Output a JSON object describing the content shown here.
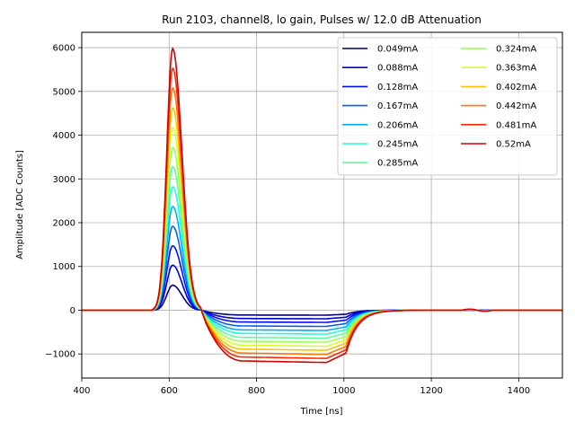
{
  "chart_data": {
    "type": "line",
    "title": "Run 2103, channel8, lo gain, Pulses w/ 12.0 dB Attenuation",
    "xlabel": "Time [ns]",
    "ylabel": "Amplitude [ADC Counts]",
    "xlim": [
      400,
      1500
    ],
    "ylim": [
      -1550,
      6350
    ],
    "xticks": [
      400,
      600,
      800,
      1000,
      1200,
      1400
    ],
    "yticks": [
      -1000,
      0,
      1000,
      2000,
      3000,
      4000,
      5000,
      6000
    ],
    "ytick_labels": [
      "−1000",
      "0",
      "1000",
      "2000",
      "3000",
      "4000",
      "5000",
      "6000"
    ],
    "grid": true,
    "legend_position": "top-right",
    "legend_columns": 2,
    "series": [
      {
        "name": "0.049mA",
        "color": "#00007f",
        "peak": 570,
        "undershoot": -110
      },
      {
        "name": "0.088mA",
        "color": "#0000c8",
        "peak": 1030,
        "undershoot": -190
      },
      {
        "name": "0.128mA",
        "color": "#0010ff",
        "peak": 1470,
        "undershoot": -270
      },
      {
        "name": "0.167mA",
        "color": "#0060ff",
        "peak": 1920,
        "undershoot": -360
      },
      {
        "name": "0.206mA",
        "color": "#00b0ff",
        "peak": 2370,
        "undershoot": -450
      },
      {
        "name": "0.245mA",
        "color": "#20ffd8",
        "peak": 2820,
        "undershoot": -530
      },
      {
        "name": "0.285mA",
        "color": "#5cff9b",
        "peak": 3280,
        "undershoot": -620
      },
      {
        "name": "0.324mA",
        "color": "#9bff5c",
        "peak": 3720,
        "undershoot": -710
      },
      {
        "name": "0.363mA",
        "color": "#d8ff20",
        "peak": 4170,
        "undershoot": -800
      },
      {
        "name": "0.402mA",
        "color": "#ffc400",
        "peak": 4620,
        "undershoot": -890
      },
      {
        "name": "0.442mA",
        "color": "#ff7700",
        "peak": 5080,
        "undershoot": -980
      },
      {
        "name": "0.481mA",
        "color": "#ff2a00",
        "peak": 5530,
        "undershoot": -1070
      },
      {
        "name": "0.52mA",
        "color": "#d30000",
        "peak": 5980,
        "undershoot": -1160
      }
    ]
  }
}
